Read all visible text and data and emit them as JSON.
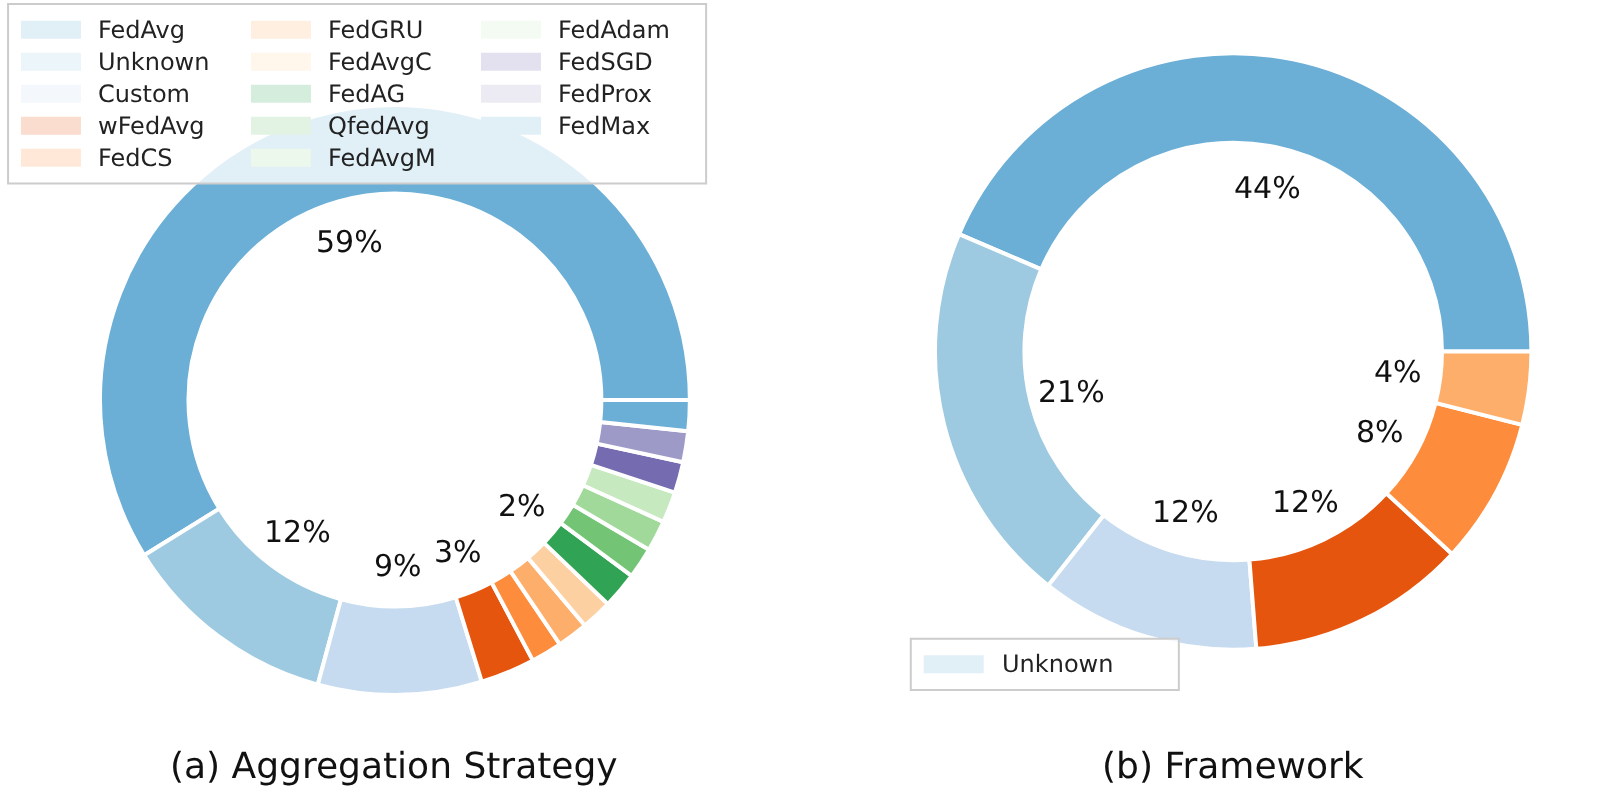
{
  "chart_data": [
    {
      "type": "donut",
      "title": "(a) Aggregation Strategy",
      "legend": "top",
      "categories": [
        "FedAvg",
        "Unknown",
        "Custom",
        "wFedAvg",
        "FedCS",
        "FedGRU",
        "FedAvgC",
        "FedAG",
        "QfedAvg",
        "FedAvgM",
        "FedAdam",
        "FedSGD",
        "FedProx",
        "FedMax"
      ],
      "values": [
        59,
        12,
        9,
        3,
        1.7,
        1.7,
        1.7,
        2,
        1.7,
        1.7,
        1.7,
        1.7,
        1.7,
        1.7
      ],
      "value_labels": [
        "59%",
        "12%",
        "9%",
        "3%",
        null,
        null,
        null,
        "2%",
        null,
        null,
        null,
        null,
        null,
        null
      ],
      "colors": [
        "#6baed6",
        "#9ecae1",
        "#c6dbef",
        "#e6550d",
        "#fd8d3c",
        "#fdae6b",
        "#fdd0a2",
        "#31a354",
        "#74c476",
        "#a1d99b",
        "#c7e9c0",
        "#756bb1",
        "#9e9ac8",
        "#6baed6"
      ]
    },
    {
      "type": "donut",
      "title": "(b) Framework",
      "legend": "bottom left",
      "categories": [
        "Unknown",
        null,
        null,
        null,
        null,
        null
      ],
      "values": [
        44,
        21,
        12,
        12,
        8,
        4
      ],
      "value_labels": [
        "44%",
        "21%",
        "12%",
        "12%",
        "8%",
        "4%"
      ],
      "colors": [
        "#6baed6",
        "#9ecae1",
        "#c6dbef",
        "#e6550d",
        "#fd8d3c",
        "#fdae6b"
      ]
    }
  ]
}
